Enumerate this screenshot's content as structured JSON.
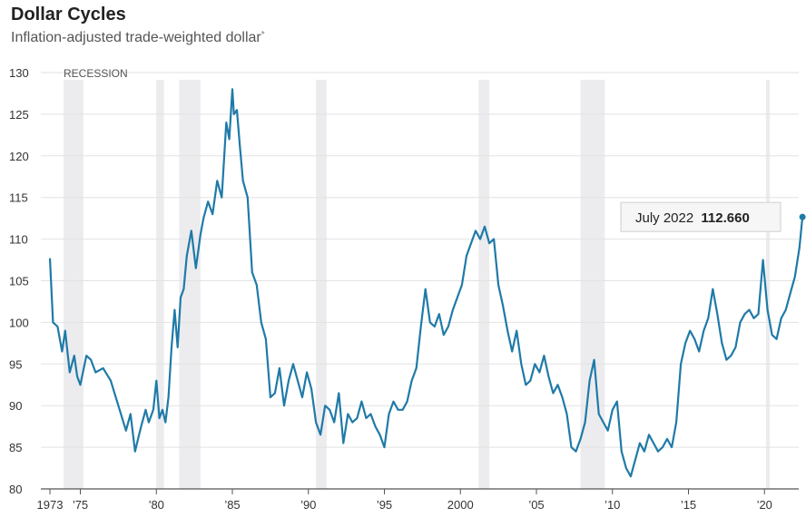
{
  "chart_data": {
    "type": "line",
    "title": "Dollar Cycles",
    "subtitle": "Inflation-adjusted trade-weighted dollar",
    "subtitle_note": "*",
    "recession_label": "RECESSION",
    "ylim": [
      80,
      130
    ],
    "y_ticks": [
      80,
      85,
      90,
      95,
      100,
      105,
      110,
      115,
      120,
      125,
      130
    ],
    "xlim": [
      1973.0,
      2022.8
    ],
    "x_ticks": [
      {
        "value": 1973,
        "label": "1973"
      },
      {
        "value": 1975,
        "label": "’75"
      },
      {
        "value": 1980,
        "label": "’80"
      },
      {
        "value": 1985,
        "label": "’85"
      },
      {
        "value": 1990,
        "label": "’90"
      },
      {
        "value": 1995,
        "label": "’95"
      },
      {
        "value": 2000,
        "label": "2000"
      },
      {
        "value": 2005,
        "label": "’05"
      },
      {
        "value": 2010,
        "label": "’10"
      },
      {
        "value": 2015,
        "label": "’15"
      },
      {
        "value": 2020,
        "label": "’20"
      }
    ],
    "recessions": [
      {
        "start": 1973.9,
        "end": 1975.2
      },
      {
        "start": 1980.0,
        "end": 1980.5
      },
      {
        "start": 1981.5,
        "end": 1982.9
      },
      {
        "start": 1990.5,
        "end": 1991.2
      },
      {
        "start": 2001.2,
        "end": 2001.9
      },
      {
        "start": 2007.9,
        "end": 2009.5
      },
      {
        "start": 2020.1,
        "end": 2020.35
      }
    ],
    "series": [
      {
        "name": "Inflation-adjusted trade-weighted dollar",
        "color": "#1f7aa8",
        "x": [
          1973.0,
          1973.2,
          1973.5,
          1973.8,
          1974.0,
          1974.3,
          1974.6,
          1974.8,
          1975.0,
          1975.4,
          1975.7,
          1976.0,
          1976.5,
          1977.0,
          1977.5,
          1978.0,
          1978.3,
          1978.6,
          1978.8,
          1979.0,
          1979.3,
          1979.5,
          1979.8,
          1980.0,
          1980.2,
          1980.4,
          1980.6,
          1980.8,
          1981.0,
          1981.2,
          1981.4,
          1981.6,
          1981.8,
          1982.0,
          1982.3,
          1982.6,
          1982.9,
          1983.1,
          1983.4,
          1983.7,
          1984.0,
          1984.3,
          1984.6,
          1984.8,
          1985.0,
          1985.1,
          1985.3,
          1985.5,
          1985.7,
          1986.0,
          1986.3,
          1986.6,
          1986.9,
          1987.2,
          1987.5,
          1987.8,
          1988.1,
          1988.4,
          1988.7,
          1989.0,
          1989.3,
          1989.6,
          1989.9,
          1990.2,
          1990.5,
          1990.8,
          1991.1,
          1991.4,
          1991.7,
          1992.0,
          1992.3,
          1992.6,
          1992.9,
          1993.2,
          1993.5,
          1993.8,
          1994.1,
          1994.4,
          1994.7,
          1995.0,
          1995.3,
          1995.6,
          1995.9,
          1996.2,
          1996.5,
          1996.8,
          1997.1,
          1997.4,
          1997.7,
          1998.0,
          1998.3,
          1998.6,
          1998.9,
          1999.2,
          1999.5,
          1999.8,
          2000.1,
          2000.4,
          2000.7,
          2001.0,
          2001.3,
          2001.6,
          2001.9,
          2002.2,
          2002.5,
          2002.8,
          2003.1,
          2003.4,
          2003.7,
          2004.0,
          2004.3,
          2004.6,
          2004.9,
          2005.2,
          2005.5,
          2005.8,
          2006.1,
          2006.4,
          2006.7,
          2007.0,
          2007.3,
          2007.6,
          2007.9,
          2008.2,
          2008.5,
          2008.8,
          2009.1,
          2009.4,
          2009.7,
          2010.0,
          2010.3,
          2010.6,
          2010.9,
          2011.2,
          2011.5,
          2011.8,
          2012.1,
          2012.4,
          2012.7,
          2013.0,
          2013.3,
          2013.6,
          2013.9,
          2014.2,
          2014.5,
          2014.8,
          2015.1,
          2015.4,
          2015.7,
          2016.0,
          2016.3,
          2016.6,
          2016.9,
          2017.2,
          2017.5,
          2017.8,
          2018.1,
          2018.4,
          2018.7,
          2019.0,
          2019.3,
          2019.6,
          2019.9,
          2020.2,
          2020.5,
          2020.8,
          2021.1,
          2021.4,
          2021.7,
          2022.0,
          2022.3,
          2022.5
        ],
        "values": [
          107.7,
          100.0,
          99.5,
          96.5,
          99.0,
          94.0,
          96.0,
          93.5,
          92.5,
          96.0,
          95.5,
          94.0,
          94.5,
          93.0,
          90.0,
          87.0,
          89.0,
          84.5,
          86.0,
          87.5,
          89.5,
          88.0,
          89.5,
          93.0,
          88.5,
          89.5,
          88.0,
          91.0,
          97.0,
          101.5,
          97.0,
          103.0,
          104.0,
          108.0,
          111.0,
          106.5,
          110.5,
          112.5,
          114.5,
          113.0,
          117.0,
          115.0,
          124.0,
          122.0,
          128.0,
          125.0,
          125.5,
          121.0,
          117.0,
          115.0,
          106.0,
          104.5,
          100.0,
          98.0,
          91.0,
          91.5,
          94.5,
          90.0,
          93.0,
          95.0,
          93.0,
          91.0,
          94.0,
          92.0,
          88.0,
          86.5,
          90.0,
          89.5,
          88.0,
          91.5,
          85.5,
          89.0,
          88.0,
          88.5,
          90.5,
          88.5,
          89.0,
          87.5,
          86.5,
          85.0,
          89.0,
          90.5,
          89.5,
          89.5,
          90.5,
          93.0,
          94.5,
          99.5,
          104.0,
          100.0,
          99.5,
          101.0,
          98.5,
          99.5,
          101.5,
          103.0,
          104.5,
          108.0,
          109.5,
          111.0,
          110.0,
          111.5,
          109.5,
          110.0,
          104.5,
          102.0,
          99.0,
          96.5,
          99.0,
          95.0,
          92.5,
          93.0,
          95.0,
          94.0,
          96.0,
          93.5,
          91.5,
          92.5,
          91.0,
          89.0,
          85.0,
          84.5,
          86.0,
          88.0,
          93.0,
          95.5,
          89.0,
          88.0,
          87.0,
          89.5,
          90.5,
          84.5,
          82.5,
          81.5,
          83.5,
          85.5,
          84.5,
          86.5,
          85.5,
          84.5,
          85.0,
          86.0,
          85.0,
          88.0,
          95.0,
          97.5,
          99.0,
          98.0,
          96.5,
          99.0,
          100.5,
          104.0,
          101.0,
          97.5,
          95.5,
          96.0,
          97.0,
          100.0,
          101.0,
          101.5,
          100.5,
          101.0,
          107.5,
          101.5,
          98.5,
          98.0,
          100.5,
          101.5,
          103.5,
          105.5,
          109.0,
          112.66
        ]
      }
    ],
    "callout": {
      "label": "July 2022",
      "value": "112.660",
      "x": 2022.5,
      "y": 112.66
    }
  }
}
